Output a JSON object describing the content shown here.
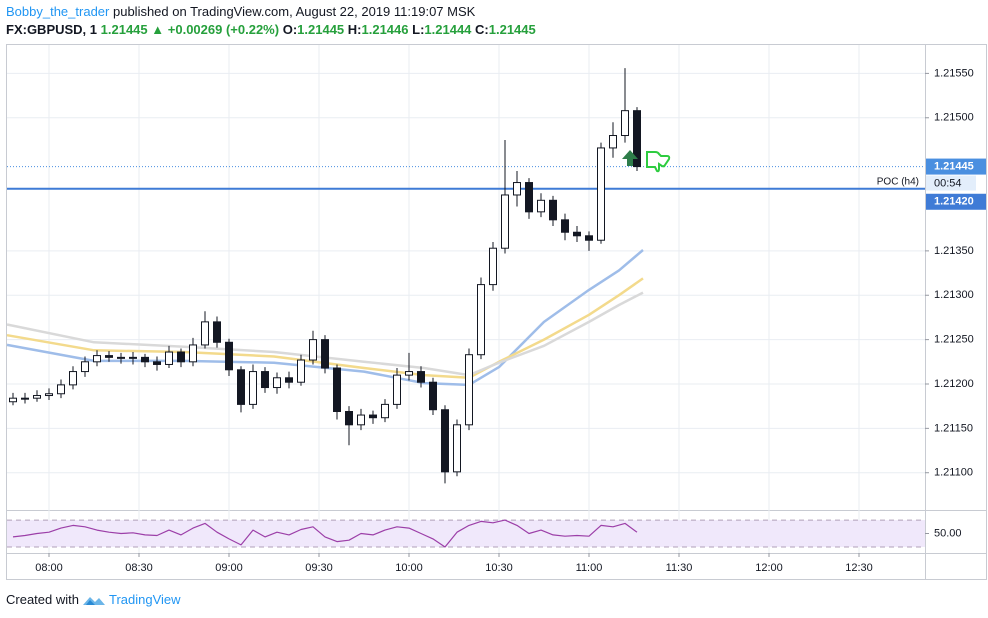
{
  "header": {
    "author": "Bobby_the_trader",
    "published": "published on TradingView.com, August 22, 2019 11:19:07 MSK",
    "symbol": "FX:GBPUSD, 1",
    "last": "1.21445",
    "change": "+0.00269 (+0.22%)",
    "o_label": "O:",
    "open": "1.21445",
    "h_label": "H:",
    "high": "1.21446",
    "l_label": "L:",
    "low": "1.21444",
    "c_label": "C:",
    "close": "1.21445"
  },
  "chart_data": {
    "type": "candlestick",
    "x": [
      "07:48",
      "07:52",
      "07:56",
      "08:00",
      "08:04",
      "08:08",
      "08:12",
      "08:16",
      "08:20",
      "08:24",
      "08:28",
      "08:32",
      "08:36",
      "08:40",
      "08:44",
      "08:48",
      "08:52",
      "08:56",
      "09:00",
      "09:04",
      "09:08",
      "09:12",
      "09:16",
      "09:20",
      "09:24",
      "09:28",
      "09:32",
      "09:36",
      "09:40",
      "09:44",
      "09:48",
      "09:52",
      "09:56",
      "10:00",
      "10:04",
      "10:08",
      "10:12",
      "10:16",
      "10:20",
      "10:24",
      "10:28",
      "10:32",
      "10:36",
      "10:40",
      "10:44",
      "10:48",
      "10:52",
      "10:56",
      "11:00",
      "11:04",
      "11:08",
      "11:12",
      "11:16"
    ],
    "open": [
      1.2118,
      1.21184,
      1.21184,
      1.21187,
      1.21189,
      1.21199,
      1.21214,
      1.21225,
      1.21232,
      1.2123,
      1.21229,
      1.2123,
      1.21225,
      1.21222,
      1.21236,
      1.21225,
      1.21244,
      1.2127,
      1.21247,
      1.21216,
      1.21177,
      1.21214,
      1.21196,
      1.21207,
      1.21202,
      1.21227,
      1.2125,
      1.21218,
      1.21169,
      1.21154,
      1.21165,
      1.21162,
      1.21177,
      1.2121,
      1.21214,
      1.21202,
      1.21171,
      1.21101,
      1.21154,
      1.21233,
      1.21312,
      1.21353,
      1.21413,
      1.21427,
      1.21394,
      1.21407,
      1.21385,
      1.21371,
      1.21367,
      1.21362,
      1.21466,
      1.2148,
      1.21508
    ],
    "high": [
      1.2119,
      1.2119,
      1.21193,
      1.21195,
      1.21205,
      1.2122,
      1.21231,
      1.21238,
      1.21237,
      1.21235,
      1.21236,
      1.21234,
      1.21231,
      1.21243,
      1.2124,
      1.21252,
      1.21282,
      1.21276,
      1.21251,
      1.2122,
      1.21222,
      1.21219,
      1.21213,
      1.21214,
      1.21233,
      1.2126,
      1.21255,
      1.21222,
      1.21175,
      1.21172,
      1.2117,
      1.21183,
      1.21218,
      1.21235,
      1.2122,
      1.21207,
      1.21176,
      1.2116,
      1.2124,
      1.2132,
      1.2136,
      1.21475,
      1.2144,
      1.21432,
      1.21415,
      1.21412,
      1.21392,
      1.21378,
      1.21372,
      1.21472,
      1.21495,
      1.21556,
      1.21512
    ],
    "low": [
      1.21176,
      1.21178,
      1.2118,
      1.21182,
      1.21184,
      1.21194,
      1.21208,
      1.2122,
      1.21225,
      1.21223,
      1.21222,
      1.21219,
      1.21215,
      1.21218,
      1.21219,
      1.2122,
      1.2124,
      1.21241,
      1.21209,
      1.21168,
      1.21172,
      1.2119,
      1.21189,
      1.21195,
      1.21198,
      1.21222,
      1.21212,
      1.2116,
      1.21131,
      1.21148,
      1.21155,
      1.21157,
      1.21172,
      1.21204,
      1.21196,
      1.21165,
      1.21088,
      1.21096,
      1.21148,
      1.21228,
      1.21305,
      1.21347,
      1.214,
      1.21386,
      1.21388,
      1.21378,
      1.21362,
      1.2136,
      1.2135,
      1.21358,
      1.21455,
      1.21472,
      1.2144
    ],
    "close": [
      1.21184,
      1.21184,
      1.21187,
      1.21189,
      1.21199,
      1.21214,
      1.21225,
      1.21232,
      1.2123,
      1.21229,
      1.2123,
      1.21225,
      1.21222,
      1.21236,
      1.21225,
      1.21244,
      1.2127,
      1.21247,
      1.21216,
      1.21177,
      1.21214,
      1.21196,
      1.21207,
      1.21202,
      1.21227,
      1.2125,
      1.21218,
      1.21169,
      1.21154,
      1.21165,
      1.21162,
      1.21177,
      1.2121,
      1.21214,
      1.21202,
      1.21171,
      1.21101,
      1.21154,
      1.21233,
      1.21312,
      1.21353,
      1.21413,
      1.21427,
      1.21394,
      1.21407,
      1.21385,
      1.21371,
      1.21367,
      1.21362,
      1.21466,
      1.2148,
      1.21508,
      1.21445
    ],
    "up_color": "#ffffff",
    "down_color": "#131722",
    "wick_color": "#131722",
    "series": [
      {
        "color": "#9fbde9",
        "x": [
          "07:46",
          "08:15",
          "08:45",
          "09:15",
          "09:45",
          "10:05",
          "10:20",
          "10:30",
          "10:45",
          "11:00",
          "11:10",
          "11:18"
        ],
        "values": [
          1.21244,
          1.21226,
          1.21226,
          1.21224,
          1.21214,
          1.21201,
          1.21199,
          1.21219,
          1.2127,
          1.21306,
          1.21328,
          1.21351
        ]
      },
      {
        "color": "#f3da8c",
        "x": [
          "07:46",
          "08:15",
          "08:45",
          "09:15",
          "09:45",
          "10:05",
          "10:20",
          "10:30",
          "10:45",
          "11:00",
          "11:10",
          "11:18"
        ],
        "values": [
          1.21255,
          1.21238,
          1.21236,
          1.21231,
          1.21218,
          1.2121,
          1.21207,
          1.21225,
          1.2125,
          1.21278,
          1.213,
          1.21319
        ]
      },
      {
        "color": "#d9d9d9",
        "x": [
          "07:46",
          "08:15",
          "08:45",
          "09:15",
          "09:45",
          "10:05",
          "10:20",
          "10:30",
          "10:45",
          "11:00",
          "11:10",
          "11:18"
        ],
        "values": [
          1.21267,
          1.21247,
          1.21242,
          1.21236,
          1.21225,
          1.21218,
          1.2121,
          1.21224,
          1.21243,
          1.2127,
          1.21289,
          1.21303
        ]
      }
    ],
    "xlim": [
      "07:46",
      "12:52"
    ],
    "xticks": [
      "08:00",
      "08:30",
      "09:00",
      "09:30",
      "10:00",
      "10:30",
      "11:00",
      "11:30",
      "12:00",
      "12:30"
    ],
    "ylim": [
      1.21058,
      1.21582
    ],
    "yticks": [
      {
        "value": 1.2155,
        "label": "1.21550"
      },
      {
        "value": 1.215,
        "label": "1.21500"
      },
      {
        "value": 1.2135,
        "label": "1.21350"
      },
      {
        "value": 1.213,
        "label": "1.21300"
      },
      {
        "value": 1.2125,
        "label": "1.21250"
      },
      {
        "value": 1.212,
        "label": "1.21200"
      },
      {
        "value": 1.2115,
        "label": "1.21150"
      },
      {
        "value": 1.211,
        "label": "1.21100"
      }
    ],
    "grid": true,
    "poc": {
      "name": "POC (h4)",
      "value": 1.2142,
      "label": "1.21420",
      "color": "#3f7bd6"
    },
    "last_price": {
      "value": 1.21445,
      "label": "1.21445",
      "countdown": "00:54",
      "color": "#4a8fe0"
    },
    "rsi": {
      "color": "#9c3fa8",
      "ylim": [
        21,
        82
      ],
      "yticks": [
        {
          "value": 50,
          "label": "50.00"
        }
      ],
      "bands": [
        70,
        30
      ],
      "values": [
        45,
        47,
        50,
        52,
        58,
        62,
        60,
        55,
        52,
        50,
        51,
        48,
        47,
        55,
        48,
        58,
        65,
        52,
        42,
        33,
        55,
        45,
        52,
        48,
        56,
        60,
        45,
        38,
        40,
        50,
        48,
        55,
        60,
        58,
        50,
        42,
        30,
        52,
        62,
        68,
        66,
        70,
        62,
        50,
        55,
        48,
        46,
        47,
        46,
        62,
        60,
        65,
        52
      ]
    }
  },
  "footer": {
    "prefix": "Created with",
    "brand": "TradingView"
  }
}
